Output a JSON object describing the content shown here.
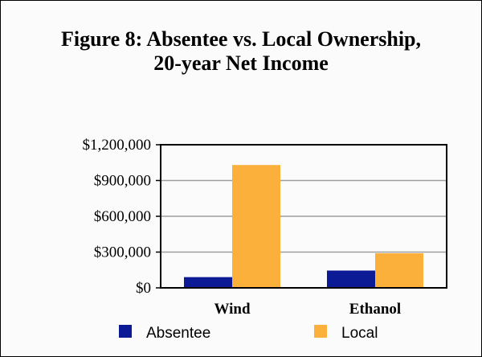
{
  "chart_data": {
    "type": "bar",
    "title": "Figure 8: Absentee vs. Local Ownership, 20-year Net Income",
    "title_lines": [
      "Figure 8: Absentee vs. Local Ownership,",
      "20-year Net Income"
    ],
    "categories": [
      "Wind",
      "Ethanol"
    ],
    "series": [
      {
        "name": "Absentee",
        "color": "#0c1a96",
        "values": [
          90000,
          145000
        ]
      },
      {
        "name": "Local",
        "color": "#fbb03b",
        "values": [
          1030000,
          290000
        ]
      }
    ],
    "ylim": [
      0,
      1200000
    ],
    "yticks": [
      0,
      300000,
      600000,
      900000,
      1200000
    ],
    "ytick_labels": [
      "$0",
      "$300,000",
      "$600,000",
      "$900,000",
      "$1,200,000"
    ],
    "grid": true,
    "legend": "bottom"
  }
}
